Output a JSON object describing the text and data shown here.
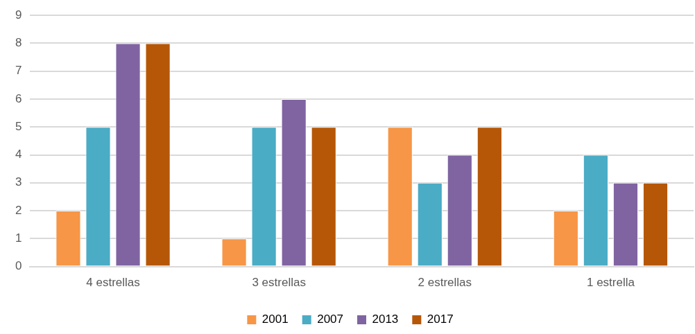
{
  "chart_data": {
    "type": "bar",
    "categories": [
      "4 estrellas",
      "3 estrellas",
      "2 estrellas",
      "1 estrella"
    ],
    "series": [
      {
        "name": "2001",
        "color": "#f79646",
        "values": [
          2,
          1,
          5,
          2
        ]
      },
      {
        "name": "2007",
        "color": "#4bacc6",
        "values": [
          5,
          5,
          3,
          4
        ]
      },
      {
        "name": "2013",
        "color": "#8064a2",
        "values": [
          8,
          6,
          4,
          3
        ]
      },
      {
        "name": "2017",
        "color": "#b65708",
        "values": [
          8,
          5,
          5,
          3
        ]
      }
    ],
    "ylim": [
      0,
      9
    ],
    "yticks": [
      0,
      1,
      2,
      3,
      4,
      5,
      6,
      7,
      8,
      9
    ],
    "grid": "y",
    "legend": "bottom"
  }
}
